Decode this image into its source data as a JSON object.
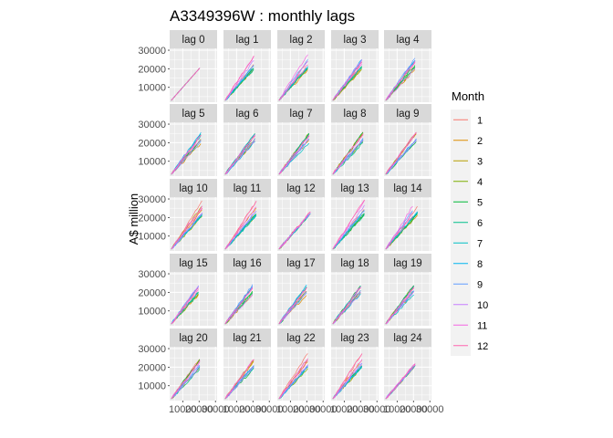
{
  "chart_data": {
    "type": "line",
    "title": "A3349396W :  monthly lags",
    "ylabel": "A$ million",
    "xlabel": "",
    "facet_labels": [
      "lag 0",
      "lag 1",
      "lag 2",
      "lag 3",
      "lag 4",
      "lag 5",
      "lag 6",
      "lag 7",
      "lag 8",
      "lag 9",
      "lag 10",
      "lag 11",
      "lag 12",
      "lag 13",
      "lag 14",
      "lag 15",
      "lag 16",
      "lag 17",
      "lag 18",
      "lag 19",
      "lag 20",
      "lag 21",
      "lag 22",
      "lag 23",
      "lag 24"
    ],
    "x_ticks": [
      10000,
      20000,
      30000
    ],
    "x_tick_labels": [
      "10000",
      "20000",
      "30000"
    ],
    "y_ticks": [
      10000,
      20000,
      30000
    ],
    "y_tick_labels": [
      "10000",
      "20000",
      "30000"
    ],
    "xlim": [
      2000,
      31000
    ],
    "ylim": [
      2000,
      31000
    ],
    "grid": true,
    "legend": {
      "title": "Month",
      "position": "right",
      "entries": [
        "1",
        "2",
        "3",
        "4",
        "5",
        "6",
        "7",
        "8",
        "9",
        "10",
        "11",
        "12"
      ],
      "colors": [
        "#F8766D",
        "#DE8C00",
        "#B79F00",
        "#7CAE00",
        "#00BA38",
        "#00C08B",
        "#00BFC4",
        "#00B4F0",
        "#619CFF",
        "#C77CFF",
        "#F564E3",
        "#FF64B0"
      ]
    },
    "series_note": "Each panel plots monthly value against its lagged value; all months start near (3000, 3000).",
    "series_start": [
      3000,
      3000
    ],
    "series_end_x": 21000,
    "end_ratios": [
      1.4,
      0.88,
      1.02,
      0.98,
      1.0,
      0.96,
      0.94,
      1.05,
      1.1,
      1.03,
      1.38,
      1.33
    ]
  },
  "page": {
    "background": "#ffffff",
    "panel_background": "#EBEBEB",
    "strip_background": "#D9D9D9",
    "grid_color": "#ffffff"
  }
}
